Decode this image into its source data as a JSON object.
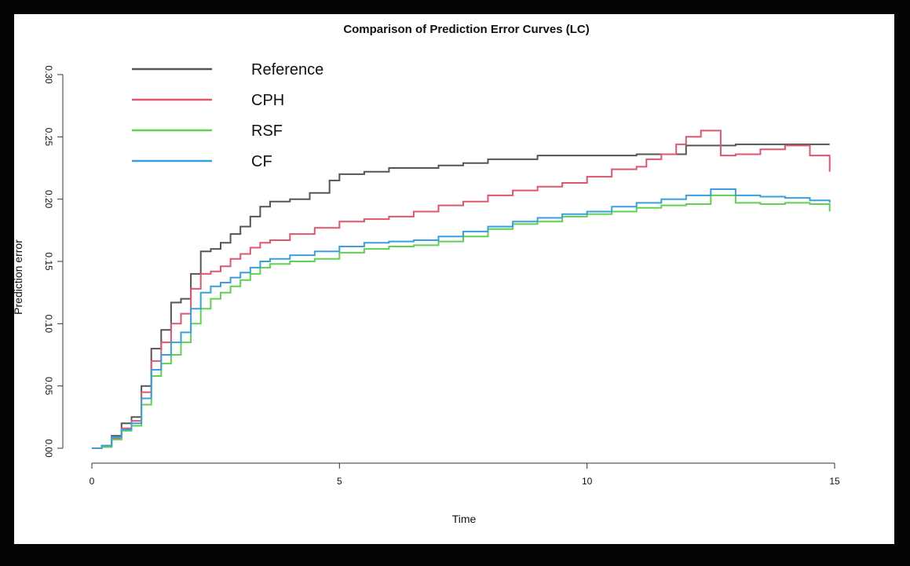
{
  "chart_data": {
    "type": "line",
    "title": "Comparison of Prediction Error Curves (LC)",
    "xlabel": "Time",
    "ylabel": "Prediction error",
    "xlim": [
      0,
      15
    ],
    "ylim": [
      0,
      0.3
    ],
    "xticks": [
      0,
      5,
      10,
      15
    ],
    "yticks": [
      0.0,
      0.05,
      0.1,
      0.15,
      0.2,
      0.25,
      0.3
    ],
    "xtick_labels": [
      "0",
      "5",
      "10",
      "15"
    ],
    "ytick_labels": [
      "0.00",
      "0.05",
      "0.10",
      "0.15",
      "0.20",
      "0.25",
      "0.30"
    ],
    "grid": false,
    "legend_position": "top-left",
    "series": [
      {
        "name": "Reference",
        "color": "#555555",
        "x": [
          0,
          0.2,
          0.4,
          0.6,
          0.8,
          1.0,
          1.2,
          1.4,
          1.6,
          1.8,
          2.0,
          2.2,
          2.4,
          2.6,
          2.8,
          3.0,
          3.2,
          3.4,
          3.6,
          4.0,
          4.4,
          4.8,
          5.0,
          5.5,
          6.0,
          7.0,
          7.5,
          8.0,
          9.0,
          10.0,
          11.0,
          12.0,
          13.0,
          14.0,
          14.9
        ],
        "y": [
          0,
          0.002,
          0.01,
          0.02,
          0.025,
          0.05,
          0.08,
          0.095,
          0.117,
          0.12,
          0.14,
          0.158,
          0.16,
          0.165,
          0.172,
          0.178,
          0.186,
          0.194,
          0.198,
          0.2,
          0.205,
          0.215,
          0.22,
          0.222,
          0.225,
          0.227,
          0.229,
          0.232,
          0.235,
          0.235,
          0.236,
          0.243,
          0.244,
          0.244,
          0.244
        ]
      },
      {
        "name": "CPH",
        "color": "#e0566f",
        "x": [
          0,
          0.2,
          0.4,
          0.6,
          0.8,
          1.0,
          1.2,
          1.4,
          1.6,
          1.8,
          2.0,
          2.2,
          2.4,
          2.6,
          2.8,
          3.0,
          3.2,
          3.4,
          3.6,
          4.0,
          4.5,
          5.0,
          5.5,
          6.0,
          6.5,
          7.0,
          7.5,
          8.0,
          8.5,
          9.0,
          9.5,
          10.0,
          10.5,
          11.0,
          11.2,
          11.5,
          11.8,
          12.0,
          12.3,
          12.7,
          13.0,
          13.5,
          14.0,
          14.5,
          14.9
        ],
        "y": [
          0,
          0.001,
          0.008,
          0.016,
          0.022,
          0.045,
          0.07,
          0.085,
          0.1,
          0.108,
          0.128,
          0.14,
          0.142,
          0.146,
          0.152,
          0.156,
          0.161,
          0.165,
          0.167,
          0.172,
          0.177,
          0.182,
          0.184,
          0.186,
          0.19,
          0.195,
          0.198,
          0.203,
          0.207,
          0.21,
          0.213,
          0.218,
          0.224,
          0.226,
          0.232,
          0.236,
          0.244,
          0.25,
          0.255,
          0.235,
          0.236,
          0.24,
          0.243,
          0.235,
          0.222
        ]
      },
      {
        "name": "RSF",
        "color": "#5fd34f",
        "x": [
          0,
          0.2,
          0.4,
          0.6,
          0.8,
          1.0,
          1.2,
          1.4,
          1.6,
          1.8,
          2.0,
          2.2,
          2.4,
          2.6,
          2.8,
          3.0,
          3.2,
          3.4,
          3.6,
          4.0,
          4.5,
          5.0,
          5.5,
          6.0,
          6.5,
          7.0,
          7.5,
          8.0,
          8.5,
          9.0,
          9.5,
          10.0,
          10.5,
          11.0,
          11.5,
          12.0,
          12.5,
          13.0,
          13.5,
          14.0,
          14.5,
          14.9
        ],
        "y": [
          0,
          0.001,
          0.007,
          0.014,
          0.018,
          0.035,
          0.058,
          0.068,
          0.075,
          0.085,
          0.1,
          0.112,
          0.12,
          0.125,
          0.13,
          0.135,
          0.14,
          0.145,
          0.148,
          0.15,
          0.152,
          0.157,
          0.16,
          0.162,
          0.163,
          0.166,
          0.17,
          0.176,
          0.18,
          0.182,
          0.186,
          0.188,
          0.19,
          0.193,
          0.195,
          0.196,
          0.203,
          0.197,
          0.196,
          0.197,
          0.196,
          0.19
        ]
      },
      {
        "name": "CF",
        "color": "#3a9fe0",
        "x": [
          0,
          0.2,
          0.4,
          0.6,
          0.8,
          1.0,
          1.2,
          1.4,
          1.6,
          1.8,
          2.0,
          2.2,
          2.4,
          2.6,
          2.8,
          3.0,
          3.2,
          3.4,
          3.6,
          4.0,
          4.5,
          5.0,
          5.5,
          6.0,
          6.5,
          7.0,
          7.5,
          8.0,
          8.5,
          9.0,
          9.5,
          10.0,
          10.5,
          11.0,
          11.5,
          12.0,
          12.5,
          13.0,
          13.5,
          14.0,
          14.5,
          14.9
        ],
        "y": [
          0,
          0.002,
          0.009,
          0.015,
          0.02,
          0.04,
          0.063,
          0.075,
          0.085,
          0.093,
          0.112,
          0.125,
          0.13,
          0.133,
          0.137,
          0.141,
          0.145,
          0.15,
          0.152,
          0.155,
          0.158,
          0.162,
          0.165,
          0.166,
          0.167,
          0.17,
          0.174,
          0.178,
          0.182,
          0.185,
          0.188,
          0.19,
          0.194,
          0.197,
          0.2,
          0.203,
          0.208,
          0.203,
          0.202,
          0.201,
          0.199,
          0.197
        ]
      }
    ]
  }
}
